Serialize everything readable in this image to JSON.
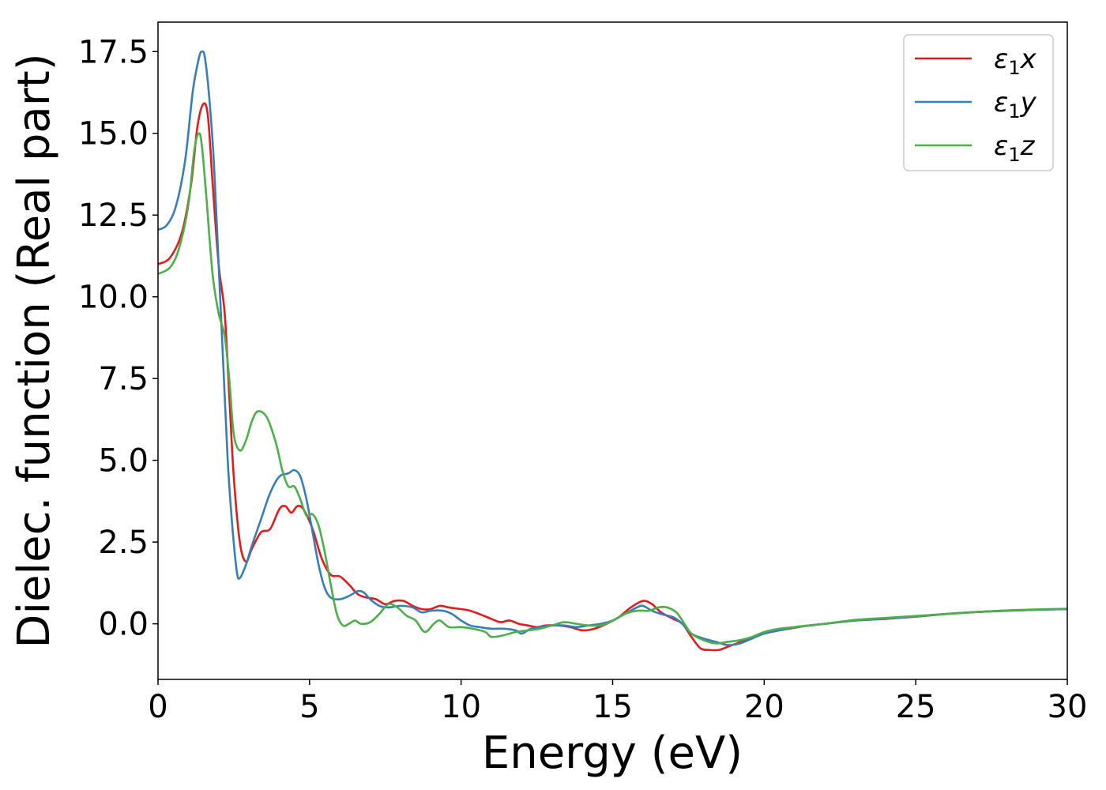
{
  "chart_data": {
    "type": "line",
    "xlabel": "Energy (eV)",
    "ylabel": "Dielec. function (Real part)",
    "xlim": [
      0,
      30
    ],
    "ylim": [
      -1.7,
      18.4
    ],
    "xticks": [
      0,
      5,
      10,
      15,
      20,
      25,
      30
    ],
    "xtick_labels": [
      "0",
      "5",
      "10",
      "15",
      "20",
      "25",
      "30"
    ],
    "yticks": [
      0,
      2.5,
      5,
      7.5,
      10,
      12.5,
      15,
      17.5
    ],
    "ytick_labels": [
      "0.0",
      "2.5",
      "5.0",
      "7.5",
      "10.0",
      "12.5",
      "15.0",
      "17.5"
    ],
    "grid": false,
    "legend_position": "top-right",
    "series": [
      {
        "name": "x",
        "legend_symbol": "ε",
        "legend_subscript": "1",
        "legend_axis": "x",
        "color": "#e41a1c",
        "points": [
          [
            0,
            11.0
          ],
          [
            0.4,
            11.2
          ],
          [
            0.8,
            12.0
          ],
          [
            1.1,
            13.5
          ],
          [
            1.3,
            15.2
          ],
          [
            1.5,
            15.9
          ],
          [
            1.65,
            15.5
          ],
          [
            1.8,
            13.5
          ],
          [
            2.0,
            11.0
          ],
          [
            2.2,
            9.5
          ],
          [
            2.35,
            7.0
          ],
          [
            2.5,
            4.5
          ],
          [
            2.7,
            2.5
          ],
          [
            2.9,
            1.9
          ],
          [
            3.1,
            2.3
          ],
          [
            3.4,
            2.8
          ],
          [
            3.7,
            2.9
          ],
          [
            4.0,
            3.5
          ],
          [
            4.2,
            3.6
          ],
          [
            4.4,
            3.4
          ],
          [
            4.6,
            3.6
          ],
          [
            4.8,
            3.5
          ],
          [
            5.1,
            2.9
          ],
          [
            5.4,
            2.0
          ],
          [
            5.7,
            1.5
          ],
          [
            6.0,
            1.45
          ],
          [
            6.3,
            1.2
          ],
          [
            6.6,
            0.9
          ],
          [
            6.9,
            0.8
          ],
          [
            7.2,
            0.75
          ],
          [
            7.5,
            0.6
          ],
          [
            7.8,
            0.7
          ],
          [
            8.1,
            0.7
          ],
          [
            8.4,
            0.55
          ],
          [
            8.7,
            0.45
          ],
          [
            9.0,
            0.45
          ],
          [
            9.3,
            0.55
          ],
          [
            9.6,
            0.5
          ],
          [
            10.0,
            0.45
          ],
          [
            10.3,
            0.4
          ],
          [
            10.6,
            0.3
          ],
          [
            11.0,
            0.15
          ],
          [
            11.3,
            0.05
          ],
          [
            11.6,
            0.1
          ],
          [
            11.9,
            0.0
          ],
          [
            12.2,
            -0.05
          ],
          [
            12.5,
            -0.1
          ],
          [
            12.8,
            -0.05
          ],
          [
            13.2,
            -0.05
          ],
          [
            13.6,
            -0.1
          ],
          [
            14.0,
            -0.2
          ],
          [
            14.4,
            -0.15
          ],
          [
            14.8,
            0.0
          ],
          [
            15.2,
            0.2
          ],
          [
            15.6,
            0.5
          ],
          [
            16.0,
            0.7
          ],
          [
            16.3,
            0.6
          ],
          [
            16.6,
            0.35
          ],
          [
            17.0,
            0.15
          ],
          [
            17.3,
            0.0
          ],
          [
            17.6,
            -0.4
          ],
          [
            17.9,
            -0.75
          ],
          [
            18.2,
            -0.8
          ],
          [
            18.5,
            -0.8
          ],
          [
            18.8,
            -0.7
          ],
          [
            19.1,
            -0.6
          ],
          [
            19.5,
            -0.45
          ],
          [
            20.0,
            -0.3
          ],
          [
            20.5,
            -0.2
          ],
          [
            21.0,
            -0.12
          ],
          [
            21.5,
            -0.05
          ],
          [
            22.0,
            0.0
          ],
          [
            23.0,
            0.1
          ],
          [
            24.0,
            0.15
          ],
          [
            25.0,
            0.22
          ],
          [
            26.0,
            0.3
          ],
          [
            27.0,
            0.36
          ],
          [
            28.0,
            0.4
          ],
          [
            29.0,
            0.43
          ],
          [
            30.0,
            0.45
          ]
        ]
      },
      {
        "name": "y",
        "legend_symbol": "ε",
        "legend_subscript": "1",
        "legend_axis": "y",
        "color": "#377eb8",
        "points": [
          [
            0,
            12.05
          ],
          [
            0.3,
            12.2
          ],
          [
            0.6,
            12.8
          ],
          [
            0.9,
            14.2
          ],
          [
            1.15,
            16.3
          ],
          [
            1.35,
            17.3
          ],
          [
            1.45,
            17.5
          ],
          [
            1.55,
            17.3
          ],
          [
            1.7,
            16.0
          ],
          [
            1.85,
            14.0
          ],
          [
            2.0,
            11.0
          ],
          [
            2.15,
            8.0
          ],
          [
            2.3,
            5.0
          ],
          [
            2.45,
            3.0
          ],
          [
            2.6,
            1.6
          ],
          [
            2.7,
            1.4
          ],
          [
            2.9,
            1.8
          ],
          [
            3.1,
            2.4
          ],
          [
            3.4,
            3.2
          ],
          [
            3.7,
            4.0
          ],
          [
            4.0,
            4.5
          ],
          [
            4.3,
            4.6
          ],
          [
            4.5,
            4.7
          ],
          [
            4.7,
            4.5
          ],
          [
            4.9,
            3.8
          ],
          [
            5.1,
            2.8
          ],
          [
            5.3,
            1.8
          ],
          [
            5.5,
            1.1
          ],
          [
            5.7,
            0.8
          ],
          [
            6.0,
            0.75
          ],
          [
            6.3,
            0.85
          ],
          [
            6.6,
            1.0
          ],
          [
            6.8,
            0.95
          ],
          [
            7.0,
            0.75
          ],
          [
            7.3,
            0.55
          ],
          [
            7.6,
            0.5
          ],
          [
            8.0,
            0.55
          ],
          [
            8.4,
            0.5
          ],
          [
            8.7,
            0.35
          ],
          [
            9.0,
            0.4
          ],
          [
            9.4,
            0.4
          ],
          [
            9.7,
            0.3
          ],
          [
            10.0,
            0.1
          ],
          [
            10.3,
            -0.05
          ],
          [
            10.6,
            -0.1
          ],
          [
            11.0,
            -0.15
          ],
          [
            11.4,
            -0.15
          ],
          [
            11.8,
            -0.2
          ],
          [
            12.0,
            -0.3
          ],
          [
            12.3,
            -0.15
          ],
          [
            12.6,
            -0.1
          ],
          [
            13.0,
            -0.05
          ],
          [
            13.4,
            -0.05
          ],
          [
            13.8,
            -0.1
          ],
          [
            14.2,
            -0.05
          ],
          [
            14.6,
            0.0
          ],
          [
            15.0,
            0.1
          ],
          [
            15.4,
            0.3
          ],
          [
            15.8,
            0.5
          ],
          [
            16.0,
            0.55
          ],
          [
            16.3,
            0.4
          ],
          [
            16.6,
            0.3
          ],
          [
            17.0,
            0.2
          ],
          [
            17.3,
            0.0
          ],
          [
            17.6,
            -0.3
          ],
          [
            18.0,
            -0.45
          ],
          [
            18.4,
            -0.55
          ],
          [
            18.8,
            -0.65
          ],
          [
            19.2,
            -0.6
          ],
          [
            19.6,
            -0.45
          ],
          [
            20.0,
            -0.3
          ],
          [
            20.5,
            -0.2
          ],
          [
            21.0,
            -0.1
          ],
          [
            21.5,
            -0.05
          ],
          [
            22.0,
            0.0
          ],
          [
            23.0,
            0.1
          ],
          [
            24.0,
            0.16
          ],
          [
            25.0,
            0.22
          ],
          [
            26.0,
            0.3
          ],
          [
            27.0,
            0.36
          ],
          [
            28.0,
            0.4
          ],
          [
            29.0,
            0.43
          ],
          [
            30.0,
            0.45
          ]
        ]
      },
      {
        "name": "z",
        "legend_symbol": "ε",
        "legend_subscript": "1",
        "legend_axis": "z",
        "color": "#4daf4a",
        "points": [
          [
            0,
            10.7
          ],
          [
            0.4,
            10.9
          ],
          [
            0.7,
            11.5
          ],
          [
            1.0,
            12.8
          ],
          [
            1.2,
            14.5
          ],
          [
            1.35,
            15.0
          ],
          [
            1.45,
            14.6
          ],
          [
            1.6,
            13.0
          ],
          [
            1.8,
            10.7
          ],
          [
            2.0,
            9.5
          ],
          [
            2.2,
            8.8
          ],
          [
            2.35,
            7.5
          ],
          [
            2.5,
            5.8
          ],
          [
            2.7,
            5.3
          ],
          [
            2.9,
            5.6
          ],
          [
            3.1,
            6.2
          ],
          [
            3.3,
            6.5
          ],
          [
            3.6,
            6.3
          ],
          [
            3.9,
            5.5
          ],
          [
            4.1,
            4.7
          ],
          [
            4.3,
            4.2
          ],
          [
            4.5,
            4.2
          ],
          [
            4.7,
            3.8
          ],
          [
            4.9,
            3.3
          ],
          [
            5.1,
            3.35
          ],
          [
            5.3,
            3.0
          ],
          [
            5.5,
            2.2
          ],
          [
            5.7,
            1.2
          ],
          [
            5.9,
            0.3
          ],
          [
            6.1,
            -0.05
          ],
          [
            6.3,
            0.0
          ],
          [
            6.5,
            0.1
          ],
          [
            6.7,
            0.0
          ],
          [
            7.0,
            0.05
          ],
          [
            7.3,
            0.3
          ],
          [
            7.6,
            0.6
          ],
          [
            7.9,
            0.5
          ],
          [
            8.2,
            0.25
          ],
          [
            8.5,
            0.1
          ],
          [
            8.8,
            -0.25
          ],
          [
            9.1,
            0.0
          ],
          [
            9.3,
            0.1
          ],
          [
            9.6,
            -0.1
          ],
          [
            10.0,
            -0.1
          ],
          [
            10.4,
            -0.15
          ],
          [
            10.8,
            -0.25
          ],
          [
            11.0,
            -0.4
          ],
          [
            11.4,
            -0.35
          ],
          [
            11.8,
            -0.25
          ],
          [
            12.2,
            -0.2
          ],
          [
            12.6,
            -0.15
          ],
          [
            13.0,
            -0.05
          ],
          [
            13.4,
            0.05
          ],
          [
            13.8,
            0.0
          ],
          [
            14.2,
            -0.05
          ],
          [
            14.6,
            -0.05
          ],
          [
            15.0,
            0.1
          ],
          [
            15.4,
            0.3
          ],
          [
            15.8,
            0.4
          ],
          [
            16.2,
            0.4
          ],
          [
            16.5,
            0.5
          ],
          [
            16.8,
            0.5
          ],
          [
            17.1,
            0.35
          ],
          [
            17.3,
            0.1
          ],
          [
            17.6,
            -0.3
          ],
          [
            18.0,
            -0.5
          ],
          [
            18.4,
            -0.6
          ],
          [
            18.8,
            -0.55
          ],
          [
            19.2,
            -0.5
          ],
          [
            19.6,
            -0.4
          ],
          [
            20.0,
            -0.25
          ],
          [
            20.5,
            -0.15
          ],
          [
            21.0,
            -0.1
          ],
          [
            21.5,
            -0.05
          ],
          [
            22.0,
            0.0
          ],
          [
            23.0,
            0.12
          ],
          [
            24.0,
            0.18
          ],
          [
            25.0,
            0.24
          ],
          [
            26.0,
            0.3
          ],
          [
            27.0,
            0.36
          ],
          [
            28.0,
            0.41
          ],
          [
            29.0,
            0.44
          ],
          [
            30.0,
            0.46
          ]
        ]
      }
    ]
  }
}
